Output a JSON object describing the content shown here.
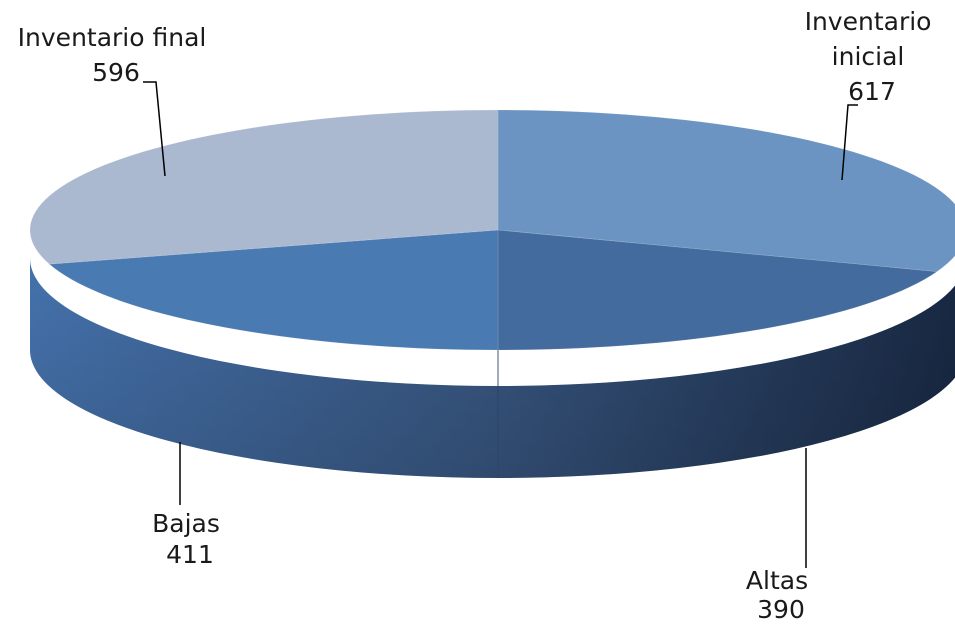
{
  "chart_data": {
    "type": "pie",
    "style": "3d-exploded-flat",
    "slices": [
      {
        "label_lines": [
          "Inventario",
          "inicial"
        ],
        "value": 617,
        "color": "#6b94c2"
      },
      {
        "label_lines": [
          "Altas"
        ],
        "value": 390,
        "color": "#446b9d"
      },
      {
        "label_lines": [
          "Bajas"
        ],
        "value": 411,
        "color": "#4a7ab2"
      },
      {
        "label_lines": [
          "Inventario final"
        ],
        "value": 596,
        "color": "#aab8d0"
      }
    ]
  }
}
